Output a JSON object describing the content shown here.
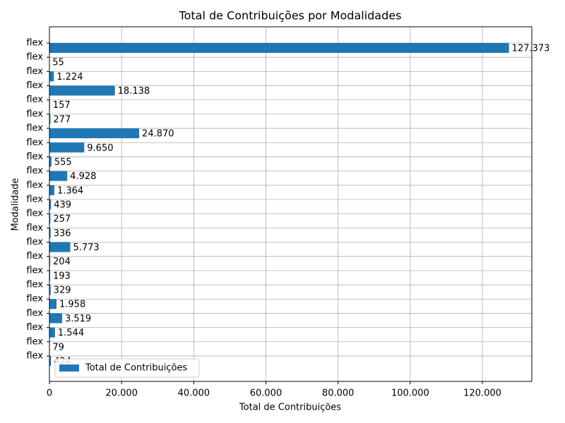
{
  "chart_data": {
    "type": "barh",
    "title": "Total de Contribuições por Modalidades",
    "xlabel": "Total de Contribuições",
    "ylabel": "Modalidade",
    "categories": [
      "flex",
      "flex",
      "flex",
      "flex",
      "flex",
      "flex",
      "flex",
      "flex",
      "flex",
      "flex",
      "flex",
      "flex",
      "flex",
      "flex",
      "flex",
      "flex",
      "flex",
      "flex",
      "flex",
      "flex",
      "flex",
      "flex",
      "flex"
    ],
    "series": [
      {
        "name": "Total de Contribuições",
        "color": "#1f77b4",
        "values": [
          127373,
          55,
          1224,
          18138,
          157,
          277,
          24870,
          9650,
          555,
          4928,
          1364,
          439,
          257,
          336,
          5773,
          204,
          193,
          329,
          1958,
          3519,
          1544,
          79,
          424
        ],
        "value_labels": [
          "127.373",
          "55",
          "1.224",
          "18.138",
          "157",
          "277",
          "24.870",
          "9.650",
          "555",
          "4.928",
          "1.364",
          "439",
          "257",
          "336",
          "5.773",
          "204",
          "193",
          "329",
          "1.958",
          "3.519",
          "1.544",
          "79",
          "424"
        ]
      }
    ],
    "xlim": [
      0,
      133700
    ],
    "xticks": [
      0,
      {
        "value": 20000,
        "label": "20.000"
      },
      {
        "value": 40000,
        "label": "40.000"
      },
      {
        "value": 60000,
        "label": "60.000"
      },
      {
        "value": 80000,
        "label": "80.000"
      },
      {
        "value": 100000,
        "label": "100.000"
      },
      {
        "value": 120000,
        "label": "120.000"
      }
    ],
    "grid": true,
    "legend": "lower left"
  }
}
